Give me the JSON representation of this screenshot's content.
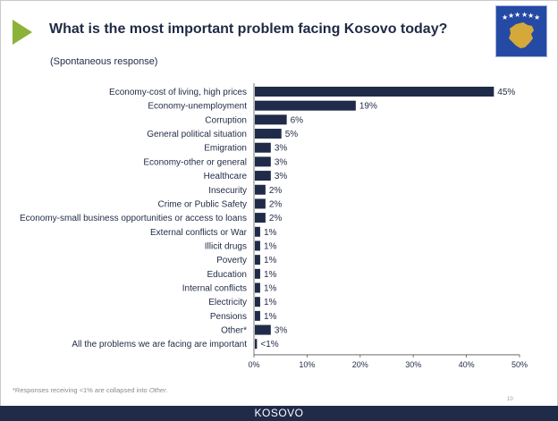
{
  "header": {
    "title": "What is the most important problem facing Kosovo today?",
    "subtitle": "(Spontaneous response)"
  },
  "footer": {
    "country": "KOSOVO",
    "page_number": "10",
    "footnote_prefix": "*Responses receiving <1% are collapsed into ",
    "footnote_emph": "Other",
    "footnote_suffix": "."
  },
  "colors": {
    "bar": "#1f2b49",
    "accent_triangle": "#8cb23a",
    "flag_blue": "#254aa5",
    "flag_gold": "#d4a93a",
    "flag_star": "#ffffff"
  },
  "chart_data": {
    "type": "bar",
    "orientation": "horizontal",
    "title": "What is the most important problem facing Kosovo today?",
    "categories": [
      "Economy-cost of living, high prices",
      "Economy-unemployment",
      "Corruption",
      "General political situation",
      "Emigration",
      "Economy-other or general",
      "Healthcare",
      "Insecurity",
      "Crime or Public Safety",
      "Economy-small business opportunities or access to loans",
      "External conflicts or War",
      "Illicit drugs",
      "Poverty",
      "Education",
      "Internal conflicts",
      "Electricity",
      "Pensions",
      "Other*",
      "All the problems we are facing are important"
    ],
    "values": [
      45,
      19,
      6,
      5,
      3,
      3,
      3,
      2,
      2,
      2,
      1,
      1,
      1,
      1,
      1,
      1,
      1,
      3,
      0.4
    ],
    "value_labels": [
      "45%",
      "19%",
      "6%",
      "5%",
      "3%",
      "3%",
      "3%",
      "2%",
      "2%",
      "2%",
      "1%",
      "1%",
      "1%",
      "1%",
      "1%",
      "1%",
      "1%",
      "3%",
      "<1%"
    ],
    "xlim": [
      0,
      50
    ],
    "xticks": [
      0,
      10,
      20,
      30,
      40,
      50
    ],
    "xtick_labels": [
      "0%",
      "10%",
      "20%",
      "30%",
      "40%",
      "50%"
    ],
    "grid": false,
    "legend": "none"
  }
}
